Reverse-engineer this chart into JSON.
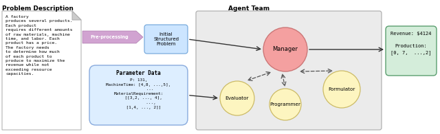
{
  "title_left": "Problem Description",
  "title_right": "Agent Team",
  "doc_text": "A factory\nproduces several products.\nEach product\nrequires different amounts\nof raw materials, machine\ntime, and labor. Each\nproduct has a price.\nThe factory needs\nto determine how much\nof each product to\nproduce to maximize the\nrevenue while not\nexceeding resource\ncapacities.",
  "preproc_label": "Pre-processing",
  "isp_label": "Initial\nStructured\nProblem",
  "param_title": "Parameter Data",
  "param_text": "P: 131,\nMachineTime: [4,8, ...,5],\n         ...\nMaterialRequirement:\n    [[3,2, ..., 4],\n          ...,\n    [1,4, ..., 2]]",
  "output_text": "Revenue: $4124\n\nProduction:\n[0, 7,  ...,2]",
  "manager_label": "Manager",
  "evaluator_label": "Evaluator",
  "programmer_label": "Programmer",
  "formulator_label": "Formulator",
  "doc_bg": "#ffffff",
  "isp_bg": "#cce5ff",
  "isp_border": "#7aabdd",
  "param_bg": "#ddeeff",
  "param_border": "#88aadd",
  "output_bg": "#d4edda",
  "output_border": "#5a9e6f",
  "agent_box_bg": "#ebebeb",
  "agent_box_border": "#aaaaaa",
  "manager_fill": "#f4a0a0",
  "manager_edge": "#cc7777",
  "sub_fill": "#fdf5c0",
  "sub_edge": "#ccbb66",
  "arrow_chevron_fill": "#cc99cc",
  "arrow_chevron_edge": "#aa77aa",
  "dashed_arrow_color": "#666666",
  "solid_arrow_color": "#333333",
  "text_color": "#000000"
}
